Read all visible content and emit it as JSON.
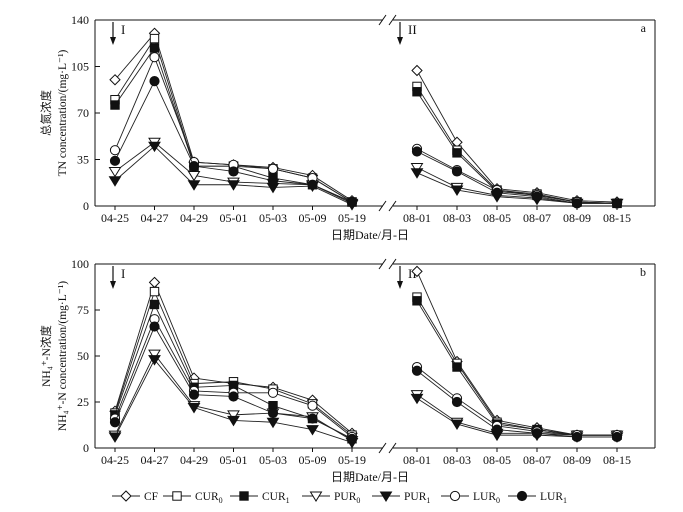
{
  "chart_data": [
    {
      "type": "line",
      "panel_label": "a",
      "ylabel_cn": "总氮浓度",
      "ylabel_en": "TN concentration/(mg·L⁻¹)",
      "xlabel": "日期Date/月-日",
      "ylim": [
        0,
        140
      ],
      "yticks": [
        "0",
        "35",
        "70",
        "105",
        "140"
      ],
      "ytick_values": [
        0,
        35,
        70,
        105,
        140
      ],
      "segments": [
        {
          "marker": "I",
          "categories": [
            "04-25",
            "04-27",
            "04-29",
            "05-01",
            "05-03",
            "05-09",
            "05-19"
          ]
        },
        {
          "marker": "II",
          "categories": [
            "08-01",
            "08-03",
            "08-05",
            "08-07",
            "08-09",
            "08-15"
          ]
        }
      ],
      "series": [
        {
          "name": "CF",
          "marker": "diamond-open",
          "values": [
            [
              95,
              130,
              33,
              31,
              29,
              23,
              4
            ],
            [
              102,
              48,
              13,
              10,
              4,
              3
            ]
          ]
        },
        {
          "name": "CUR0",
          "marker": "square-open",
          "values": [
            [
              80,
              126,
              30,
              30,
              28,
              21,
              3
            ],
            [
              90,
              42,
              12,
              9,
              3,
              2
            ]
          ]
        },
        {
          "name": "CUR1",
          "marker": "square-filled",
          "values": [
            [
              76,
              119,
              30,
              30,
              21,
              16,
              3
            ],
            [
              86,
              40,
              11,
              8,
              3,
              2
            ]
          ]
        },
        {
          "name": "PUR0",
          "marker": "tri-open",
          "values": [
            [
              26,
              48,
              23,
              18,
              17,
              16,
              2
            ],
            [
              29,
              14,
              8,
              6,
              2,
              2
            ]
          ]
        },
        {
          "name": "PUR1",
          "marker": "tri-filled",
          "values": [
            [
              19,
              45,
              16,
              16,
              14,
              15,
              1
            ],
            [
              25,
              12,
              7,
              5,
              2,
              2
            ]
          ]
        },
        {
          "name": "LUR0",
          "marker": "circle-open",
          "values": [
            [
              42,
              112,
              33,
              31,
              28,
              21,
              3
            ],
            [
              43,
              27,
              12,
              8,
              3,
              2
            ]
          ]
        },
        {
          "name": "LUR1",
          "marker": "circle-filled",
          "values": [
            [
              34,
              94,
              30,
              26,
              19,
              16,
              3
            ],
            [
              41,
              26,
              10,
              7,
              2,
              2
            ]
          ]
        }
      ]
    },
    {
      "type": "line",
      "panel_label": "b",
      "ylabel_cn": "NH₄⁺-N浓度",
      "ylabel_en": "NH₄⁺-N concentration/(mg·L⁻¹)",
      "xlabel": "日期Date/月-日",
      "ylim": [
        0,
        100
      ],
      "yticks": [
        "0",
        "25",
        "50",
        "75",
        "100"
      ],
      "ytick_values": [
        0,
        25,
        50,
        75,
        100
      ],
      "segments": [
        {
          "marker": "I",
          "categories": [
            "04-25",
            "04-27",
            "04-29",
            "05-01",
            "05-03",
            "05-09",
            "05-19"
          ]
        },
        {
          "marker": "II",
          "categories": [
            "08-01",
            "08-03",
            "08-05",
            "08-07",
            "08-09",
            "08-15"
          ]
        }
      ],
      "series": [
        {
          "name": "CF",
          "marker": "diamond-open",
          "values": [
            [
              20,
              90,
              38,
              35,
              33,
              26,
              8
            ],
            [
              96,
              47,
              15,
              11,
              7,
              7
            ]
          ]
        },
        {
          "name": "CUR0",
          "marker": "square-open",
          "values": [
            [
              19,
              85,
              35,
              36,
              32,
              24,
              7
            ],
            [
              82,
              46,
              14,
              10,
              7,
              7
            ]
          ]
        },
        {
          "name": "CUR1",
          "marker": "square-filled",
          "values": [
            [
              18,
              78,
              33,
              34,
              23,
              16,
              5
            ],
            [
              80,
              44,
              13,
              10,
              7,
              7
            ]
          ]
        },
        {
          "name": "PUR0",
          "marker": "tri-open",
          "values": [
            [
              7,
              51,
              23,
              18,
              19,
              17,
              4
            ],
            [
              29,
              14,
              8,
              8,
              7,
              7
            ]
          ]
        },
        {
          "name": "PUR1",
          "marker": "tri-filled",
          "values": [
            [
              6,
              48,
              22,
              15,
              14,
              10,
              3
            ],
            [
              27,
              13,
              7,
              7,
              6,
              6
            ]
          ]
        },
        {
          "name": "LUR0",
          "marker": "circle-open",
          "values": [
            [
              16,
              70,
              31,
              30,
              30,
              23,
              6
            ],
            [
              44,
              27,
              12,
              9,
              7,
              7
            ]
          ]
        },
        {
          "name": "LUR1",
          "marker": "circle-filled",
          "values": [
            [
              14,
              66,
              29,
              28,
              19,
              16,
              5
            ],
            [
              42,
              25,
              10,
              8,
              6,
              6
            ]
          ]
        }
      ]
    }
  ],
  "legend": [
    {
      "name": "CF",
      "base": "CF",
      "sub": "",
      "marker": "diamond-open"
    },
    {
      "name": "CUR0",
      "base": "CUR",
      "sub": "0",
      "marker": "square-open"
    },
    {
      "name": "CUR1",
      "base": "CUR",
      "sub": "1",
      "marker": "square-filled"
    },
    {
      "name": "PUR0",
      "base": "PUR",
      "sub": "0",
      "marker": "tri-open"
    },
    {
      "name": "PUR1",
      "base": "PUR",
      "sub": "1",
      "marker": "tri-filled"
    },
    {
      "name": "LUR0",
      "base": "LUR",
      "sub": "0",
      "marker": "circle-open"
    },
    {
      "name": "LUR1",
      "base": "LUR",
      "sub": "1",
      "marker": "circle-filled"
    }
  ]
}
